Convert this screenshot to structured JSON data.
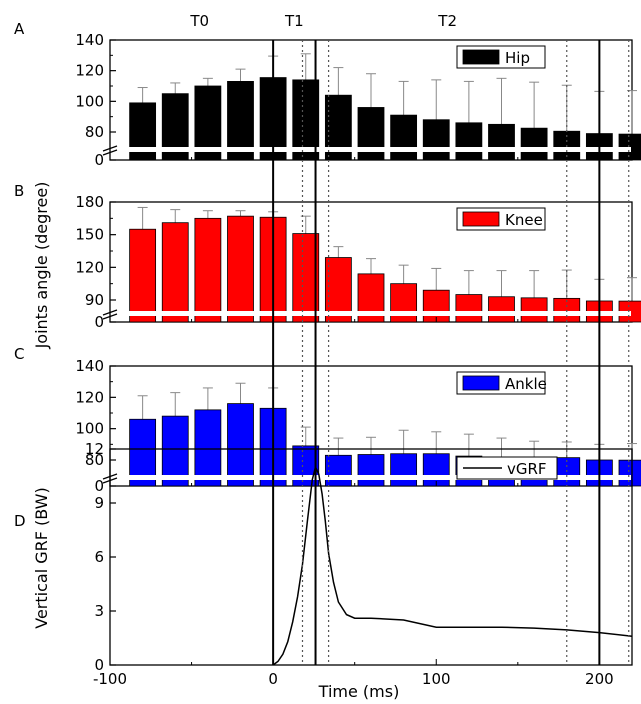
{
  "chart_data": [
    {
      "panel": "A",
      "type": "bar",
      "series": [
        {
          "name": "Hip",
          "color": "#000000",
          "x": [
            -80,
            -60,
            -40,
            -20,
            0,
            20,
            40,
            60,
            80,
            100,
            120,
            140,
            160,
            180,
            200,
            220
          ],
          "values": [
            99,
            105,
            110,
            113,
            115.5,
            114,
            104,
            96,
            91,
            88,
            86,
            85,
            82.5,
            80.5,
            75.5,
            74
          ],
          "errors": [
            10,
            7,
            5,
            8,
            14,
            17,
            18,
            22,
            22,
            26,
            27,
            30,
            30,
            30,
            31,
            33
          ]
        }
      ],
      "yticks": [
        0,
        80,
        100,
        120,
        140
      ],
      "axis_break": true,
      "ylim": [
        0,
        140
      ],
      "phase_labels": [
        {
          "text": "T0",
          "x": -45
        },
        {
          "text": "T1",
          "x": 13
        },
        {
          "text": "T2",
          "x": 107
        }
      ]
    },
    {
      "panel": "B",
      "type": "bar",
      "series": [
        {
          "name": "Knee",
          "color": "#ff0000",
          "x": [
            -80,
            -60,
            -40,
            -20,
            0,
            20,
            40,
            60,
            80,
            100,
            120,
            140,
            160,
            180,
            200,
            220
          ],
          "values": [
            155,
            161,
            165,
            167,
            166,
            151,
            129,
            114,
            105,
            99,
            95,
            93,
            92,
            91.5,
            86,
            85.5
          ],
          "errors": [
            20,
            12,
            7,
            5,
            5,
            16,
            10,
            14,
            17,
            20,
            22,
            24,
            25,
            26,
            23,
            25
          ]
        }
      ],
      "yticks": [
        0,
        90,
        120,
        150,
        180
      ],
      "axis_break": true,
      "ylim": [
        0,
        180
      ],
      "ylabel": "Joints angle (degree)"
    },
    {
      "panel": "C",
      "type": "bar",
      "series": [
        {
          "name": "Ankle",
          "color": "#0000ff",
          "x": [
            -80,
            -60,
            -40,
            -20,
            0,
            20,
            40,
            60,
            80,
            100,
            120,
            140,
            160,
            180,
            200,
            220
          ],
          "values": [
            106,
            108,
            112,
            116,
            113,
            89,
            83,
            83.5,
            84,
            84,
            82.5,
            81,
            81,
            81.5,
            80,
            79.5
          ],
          "errors": [
            15,
            15,
            14,
            13,
            13,
            12,
            11,
            11,
            15,
            14,
            14,
            13,
            11,
            10,
            10,
            11
          ]
        }
      ],
      "yticks": [
        0,
        80,
        100,
        120,
        140
      ],
      "axis_break": true,
      "ylim": [
        0,
        140
      ]
    },
    {
      "panel": "D",
      "type": "line",
      "series": [
        {
          "name": "vGRF",
          "color": "#000000",
          "x": [
            0,
            3,
            6,
            9,
            12,
            15,
            18,
            21,
            24,
            26,
            28,
            30,
            32,
            34,
            37,
            40,
            45,
            50,
            60,
            80,
            100,
            120,
            140,
            160,
            180,
            200,
            220
          ],
          "y": [
            0,
            0.2,
            0.6,
            1.3,
            2.4,
            3.8,
            5.6,
            8,
            10.3,
            11,
            10.6,
            9.5,
            8,
            6.2,
            4.6,
            3.5,
            2.8,
            2.6,
            2.6,
            2.5,
            2.1,
            2.1,
            2.1,
            2.05,
            1.95,
            1.8,
            1.6
          ]
        }
      ],
      "xlim": [
        -100,
        220
      ],
      "xticks": [
        -100,
        0,
        100,
        200
      ],
      "ylim": [
        0,
        12
      ],
      "yticks": [
        0,
        3,
        6,
        9,
        12
      ],
      "xlabel": "Time (ms)",
      "ylabel": "Vertical GRF (BW)"
    }
  ],
  "event_lines": {
    "solid": [
      0,
      26,
      200
    ],
    "dotted": [
      18,
      34,
      180,
      218
    ]
  }
}
